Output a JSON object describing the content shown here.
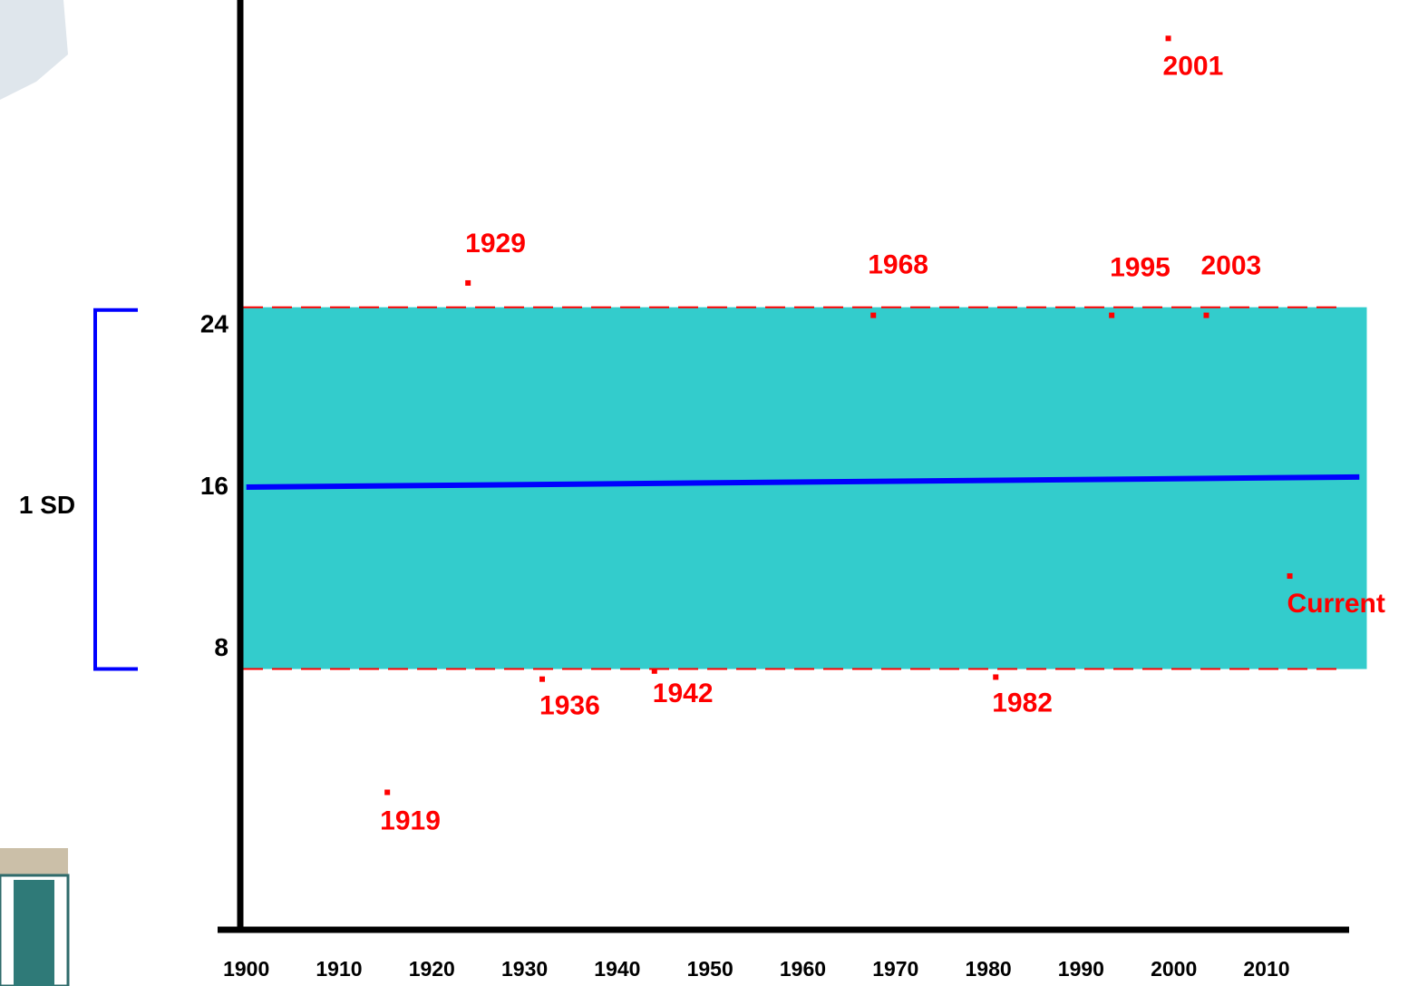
{
  "chart_data": {
    "type": "scatter",
    "xlim": [
      1897,
      2021
    ],
    "ylim": [
      -6,
      40
    ],
    "xticks": [
      1900,
      1910,
      1920,
      1930,
      1940,
      1950,
      1960,
      1970,
      1980,
      1990,
      2000,
      2010
    ],
    "yticks": [
      8,
      16,
      24
    ],
    "band": {
      "range": [
        6.9,
        24.8
      ],
      "color": "#33cccc",
      "edge_color": "#ff0000",
      "label": "1 SD",
      "bracket_color": "#0000ff"
    },
    "trend": {
      "x": [
        1900,
        2020
      ],
      "values": [
        15.9,
        16.4
      ],
      "color": "#0000ff"
    },
    "series": [
      {
        "color": "#ff0000",
        "x": [
          1915.2,
          1923.9,
          1931.9,
          1944,
          1967.6,
          1980.8,
          1993.3,
          1999.4,
          2003.5,
          2012.5
        ],
        "values": [
          0.8,
          26.0,
          6.4,
          6.8,
          24.4,
          6.5,
          24.4,
          38.1,
          24.4,
          11.5
        ],
        "labels": [
          "1919",
          "1929",
          "1936",
          "1942",
          "1968",
          "1982",
          "1995",
          "2001",
          "2003",
          "Current"
        ]
      }
    ]
  }
}
